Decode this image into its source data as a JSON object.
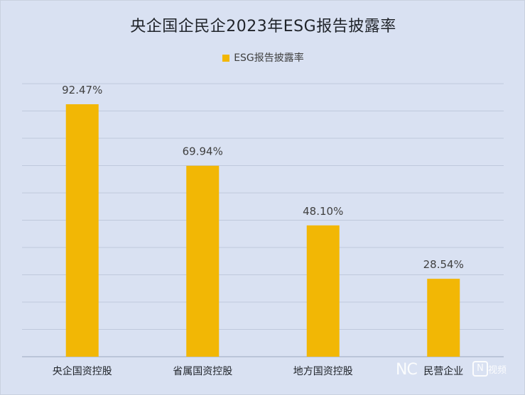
{
  "chart_data": {
    "type": "bar",
    "title": "央企国企民企2023年ESG报告披露率",
    "categories": [
      "央企国资控股",
      "省属国资控股",
      "地方国资控股",
      "民营企业"
    ],
    "series": [
      {
        "name": "ESG报告披露率",
        "values": [
          92.47,
          69.94,
          48.1,
          28.54
        ],
        "color": "#f2b705"
      }
    ],
    "data_labels": [
      "92.47%",
      "69.94%",
      "48.10%",
      "28.54%"
    ],
    "ylim": [
      0,
      100
    ],
    "grid": true,
    "legend": "top-center",
    "y_axis_labels_visible": false
  },
  "watermark": {
    "text": "NC",
    "badge": "N",
    "label": "视频"
  }
}
